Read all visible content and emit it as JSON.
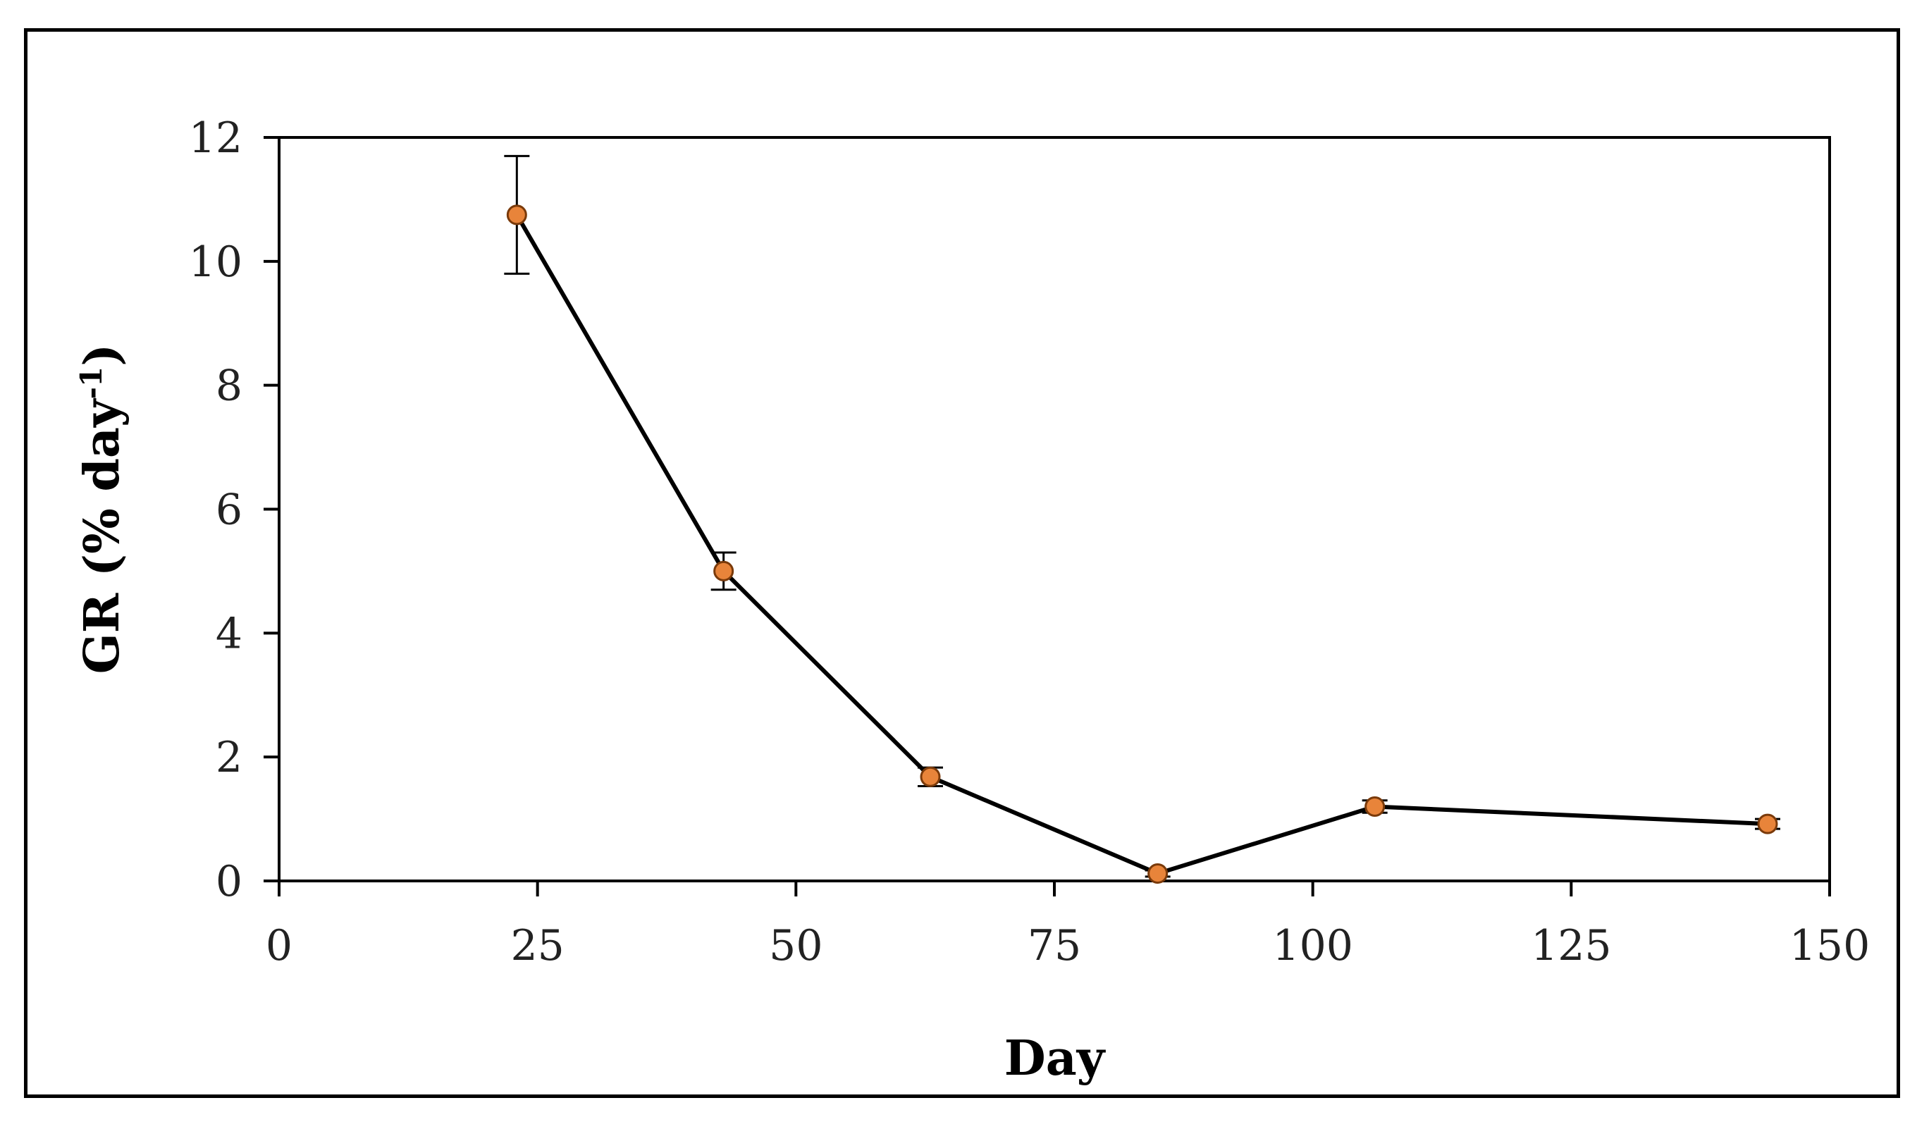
{
  "chart_data": {
    "type": "line",
    "title": "",
    "xlabel": "Day",
    "ylabel": "GR (% day",
    "ylabel_superscript": "-1",
    "ylabel_suffix": ")",
    "xlim": [
      0,
      150
    ],
    "ylim": [
      0,
      12
    ],
    "x_ticks": [
      0,
      25,
      50,
      75,
      100,
      125,
      150
    ],
    "y_ticks": [
      0,
      2,
      4,
      6,
      8,
      10,
      12
    ],
    "grid": false,
    "legend": "none",
    "series": [
      {
        "x": [
          23,
          43,
          63,
          85,
          106,
          144
        ],
        "y": [
          10.75,
          5.0,
          1.68,
          0.12,
          1.2,
          0.92
        ],
        "error": [
          0.95,
          0.3,
          0.15,
          0.05,
          0.1,
          0.08
        ]
      }
    ],
    "colors": {
      "line": "#000000",
      "marker_fill": "#e8843a",
      "marker_edge": "#7a3a0a",
      "axis": "#000000"
    }
  }
}
